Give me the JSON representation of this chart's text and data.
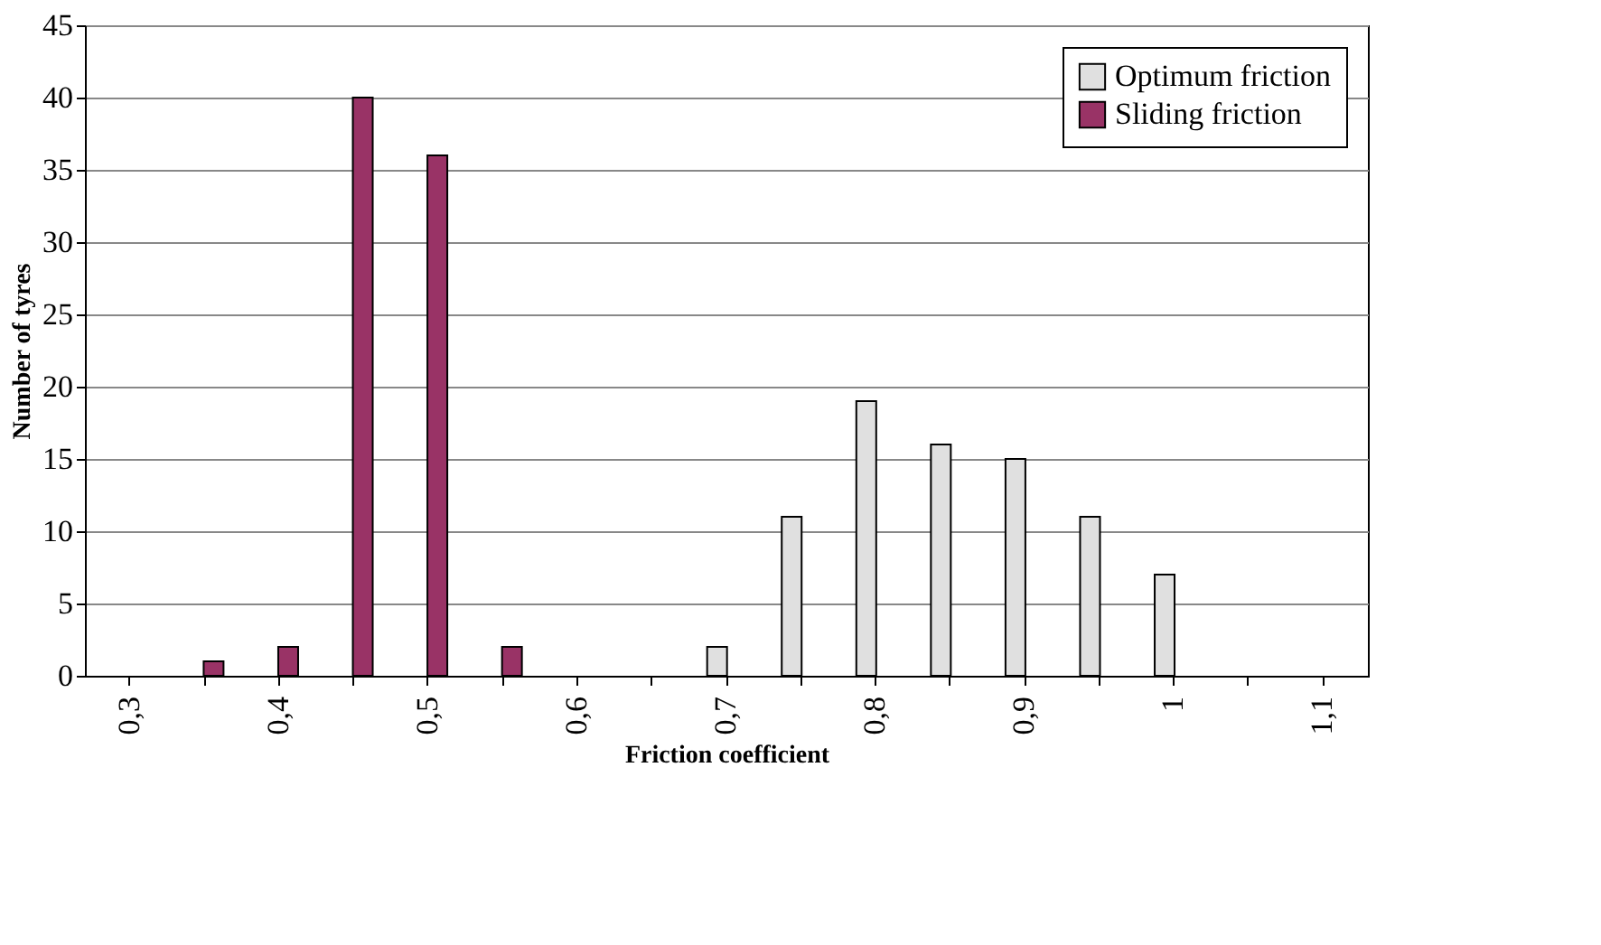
{
  "chart_data": {
    "type": "bar",
    "xlabel": "Friction coefficient",
    "ylabel": "Number of tyres",
    "categories": [
      "0,3",
      null,
      "0,4",
      null,
      "0,5",
      null,
      "0,6",
      null,
      "0,7",
      null,
      "0,8",
      null,
      "0,9",
      null,
      "1",
      null,
      "1,1"
    ],
    "series": [
      {
        "name": "Optimum friction",
        "color": "#e0e0e0",
        "values": [
          null,
          null,
          null,
          null,
          null,
          null,
          null,
          null,
          2,
          11,
          19,
          16,
          15,
          11,
          7,
          null,
          null
        ]
      },
      {
        "name": "Sliding friction",
        "color": "#993366",
        "values": [
          null,
          1,
          2,
          40,
          36,
          2,
          null,
          null,
          null,
          null,
          null,
          null,
          null,
          null,
          null,
          null,
          null
        ]
      }
    ],
    "ylim": [
      0,
      45
    ],
    "yticks": [
      0,
      5,
      10,
      15,
      20,
      25,
      30,
      35,
      40,
      45
    ],
    "grid": "y",
    "legend": "top right"
  }
}
